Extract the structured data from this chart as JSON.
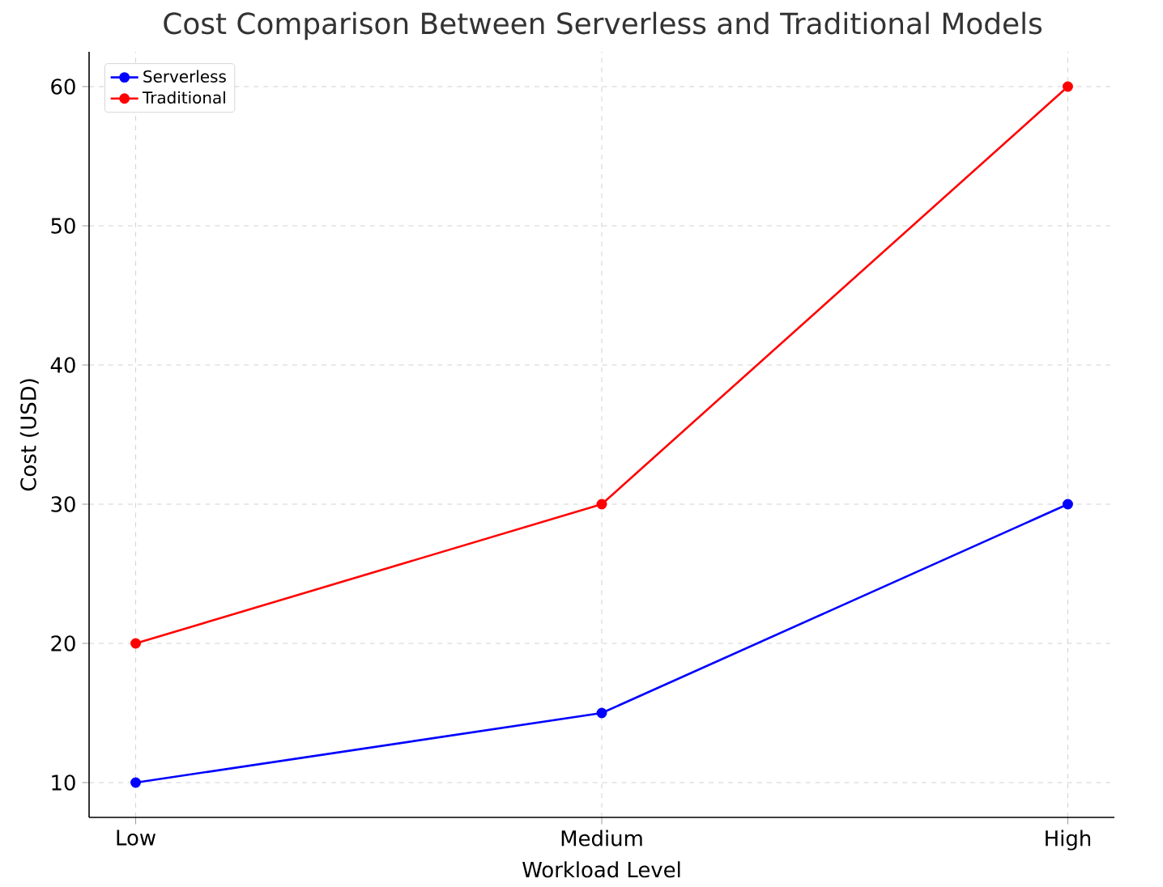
{
  "chart_data": {
    "type": "line",
    "title": "Cost Comparison Between Serverless and Traditional Models",
    "xlabel": "Workload Level",
    "ylabel": "Cost (USD)",
    "categories": [
      "Low",
      "Medium",
      "High"
    ],
    "series": [
      {
        "name": "Serverless",
        "color": "#0000ff",
        "values": [
          10,
          15,
          30
        ]
      },
      {
        "name": "Traditional",
        "color": "#ff0000",
        "values": [
          20,
          30,
          60
        ]
      }
    ],
    "ylim": [
      7.5,
      62.5
    ],
    "yticks": [
      10,
      20,
      30,
      40,
      50,
      60
    ],
    "grid": true,
    "legend": "top left",
    "marker": "circle",
    "line_style": "solid"
  }
}
